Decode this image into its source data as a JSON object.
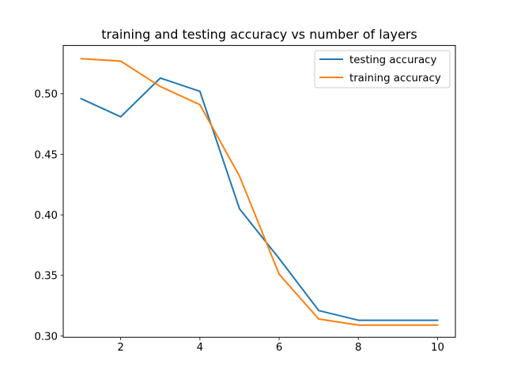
{
  "chart_data": {
    "type": "line",
    "title": "training and testing accuracy vs number of layers",
    "xlabel": "",
    "ylabel": "",
    "x": [
      1,
      2,
      3,
      4,
      5,
      6,
      7,
      8,
      9,
      10
    ],
    "xlim": [
      0.55,
      10.45
    ],
    "ylim": [
      0.2989,
      0.5399
    ],
    "xticks": [
      2,
      4,
      6,
      8,
      10
    ],
    "yticks": [
      0.3,
      0.35,
      0.4,
      0.45,
      0.5
    ],
    "xtick_labels": [
      "2",
      "4",
      "6",
      "8",
      "10"
    ],
    "ytick_labels": [
      "0.30",
      "0.35",
      "0.40",
      "0.45",
      "0.50"
    ],
    "grid": false,
    "legend_position": "top-right",
    "series": [
      {
        "name": "testing accuracy",
        "color": "#1f77b4",
        "values": [
          0.496,
          0.481,
          0.513,
          0.502,
          0.405,
          0.364,
          0.321,
          0.313,
          0.313,
          0.313
        ]
      },
      {
        "name": "training accuracy",
        "color": "#ff7f0e",
        "values": [
          0.529,
          0.527,
          0.506,
          0.491,
          0.432,
          0.351,
          0.314,
          0.309,
          0.309,
          0.309
        ]
      }
    ]
  }
}
